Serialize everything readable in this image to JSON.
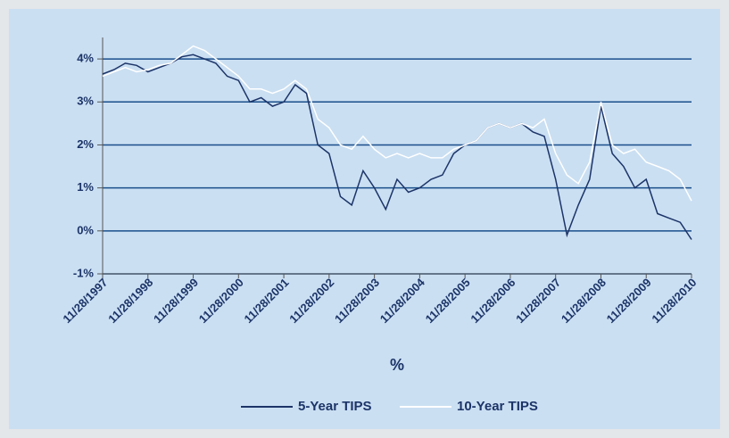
{
  "chart_data": {
    "type": "line",
    "ylabel": "%",
    "x": [
      "11/28/1997",
      "2/28/1998",
      "5/28/1998",
      "8/28/1998",
      "11/28/1998",
      "2/28/1999",
      "5/28/1999",
      "8/28/1999",
      "11/28/1999",
      "2/28/2000",
      "5/28/2000",
      "8/28/2000",
      "11/28/2000",
      "2/28/2001",
      "5/28/2001",
      "8/28/2001",
      "11/28/2001",
      "2/28/2002",
      "5/28/2002",
      "8/28/2002",
      "11/28/2002",
      "2/28/2003",
      "5/28/2003",
      "8/28/2003",
      "11/28/2003",
      "2/28/2004",
      "5/28/2004",
      "8/28/2004",
      "11/28/2004",
      "2/28/2005",
      "5/28/2005",
      "8/28/2005",
      "11/28/2005",
      "2/28/2006",
      "5/28/2006",
      "8/28/2006",
      "11/28/2006",
      "2/28/2007",
      "5/28/2007",
      "8/28/2007",
      "11/28/2007",
      "2/28/2008",
      "5/28/2008",
      "8/28/2008",
      "11/28/2008",
      "2/28/2009",
      "5/28/2009",
      "8/28/2009",
      "11/28/2009",
      "2/28/2010",
      "5/28/2010",
      "8/28/2010",
      "11/28/2010"
    ],
    "series": [
      {
        "name": "5-Year TIPS",
        "color": "#1c3468",
        "values": [
          3.65,
          3.75,
          3.9,
          3.85,
          3.7,
          3.8,
          3.9,
          4.05,
          4.1,
          4.0,
          3.9,
          3.6,
          3.5,
          3.0,
          3.1,
          2.9,
          3.0,
          3.4,
          3.2,
          2.0,
          1.8,
          0.8,
          0.6,
          1.4,
          1.0,
          0.5,
          1.2,
          0.9,
          1.0,
          1.2,
          1.3,
          1.8,
          2.0,
          2.1,
          2.4,
          2.5,
          2.4,
          2.5,
          2.3,
          2.2,
          1.2,
          -0.1,
          0.6,
          1.2,
          2.9,
          1.8,
          1.5,
          1.0,
          1.2,
          0.4,
          0.3,
          0.2,
          -0.2
        ]
      },
      {
        "name": "10-Year TIPS",
        "color": "#ffffff",
        "values": [
          3.6,
          3.7,
          3.8,
          3.7,
          3.75,
          3.85,
          3.9,
          4.1,
          4.3,
          4.2,
          4.0,
          3.8,
          3.6,
          3.3,
          3.3,
          3.2,
          3.3,
          3.5,
          3.3,
          2.6,
          2.4,
          2.0,
          1.9,
          2.2,
          1.9,
          1.7,
          1.8,
          1.7,
          1.8,
          1.7,
          1.7,
          1.9,
          2.0,
          2.1,
          2.4,
          2.5,
          2.4,
          2.5,
          2.4,
          2.6,
          1.8,
          1.3,
          1.1,
          1.6,
          3.0,
          2.0,
          1.8,
          1.9,
          1.6,
          1.5,
          1.4,
          1.2,
          0.7
        ]
      }
    ],
    "xlim": [
      "11/28/1997",
      "11/28/2010"
    ],
    "xticks": [
      "11/28/1997",
      "11/28/1998",
      "11/28/1999",
      "11/28/2000",
      "11/28/2001",
      "11/28/2002",
      "11/28/2003",
      "11/28/2004",
      "11/28/2005",
      "11/28/2006",
      "11/28/2007",
      "11/28/2008",
      "11/28/2009",
      "11/28/2010"
    ],
    "ylim": [
      -1,
      4.5
    ],
    "yticks": [
      {
        "value": -1,
        "label": "-1%"
      },
      {
        "value": 0,
        "label": "0%"
      },
      {
        "value": 1,
        "label": "1%"
      },
      {
        "value": 2,
        "label": "2%"
      },
      {
        "value": 3,
        "label": "3%"
      },
      {
        "value": 4,
        "label": "4%"
      }
    ],
    "grid": true,
    "grid_color": "#1a4f8c",
    "legend": "bottom"
  }
}
